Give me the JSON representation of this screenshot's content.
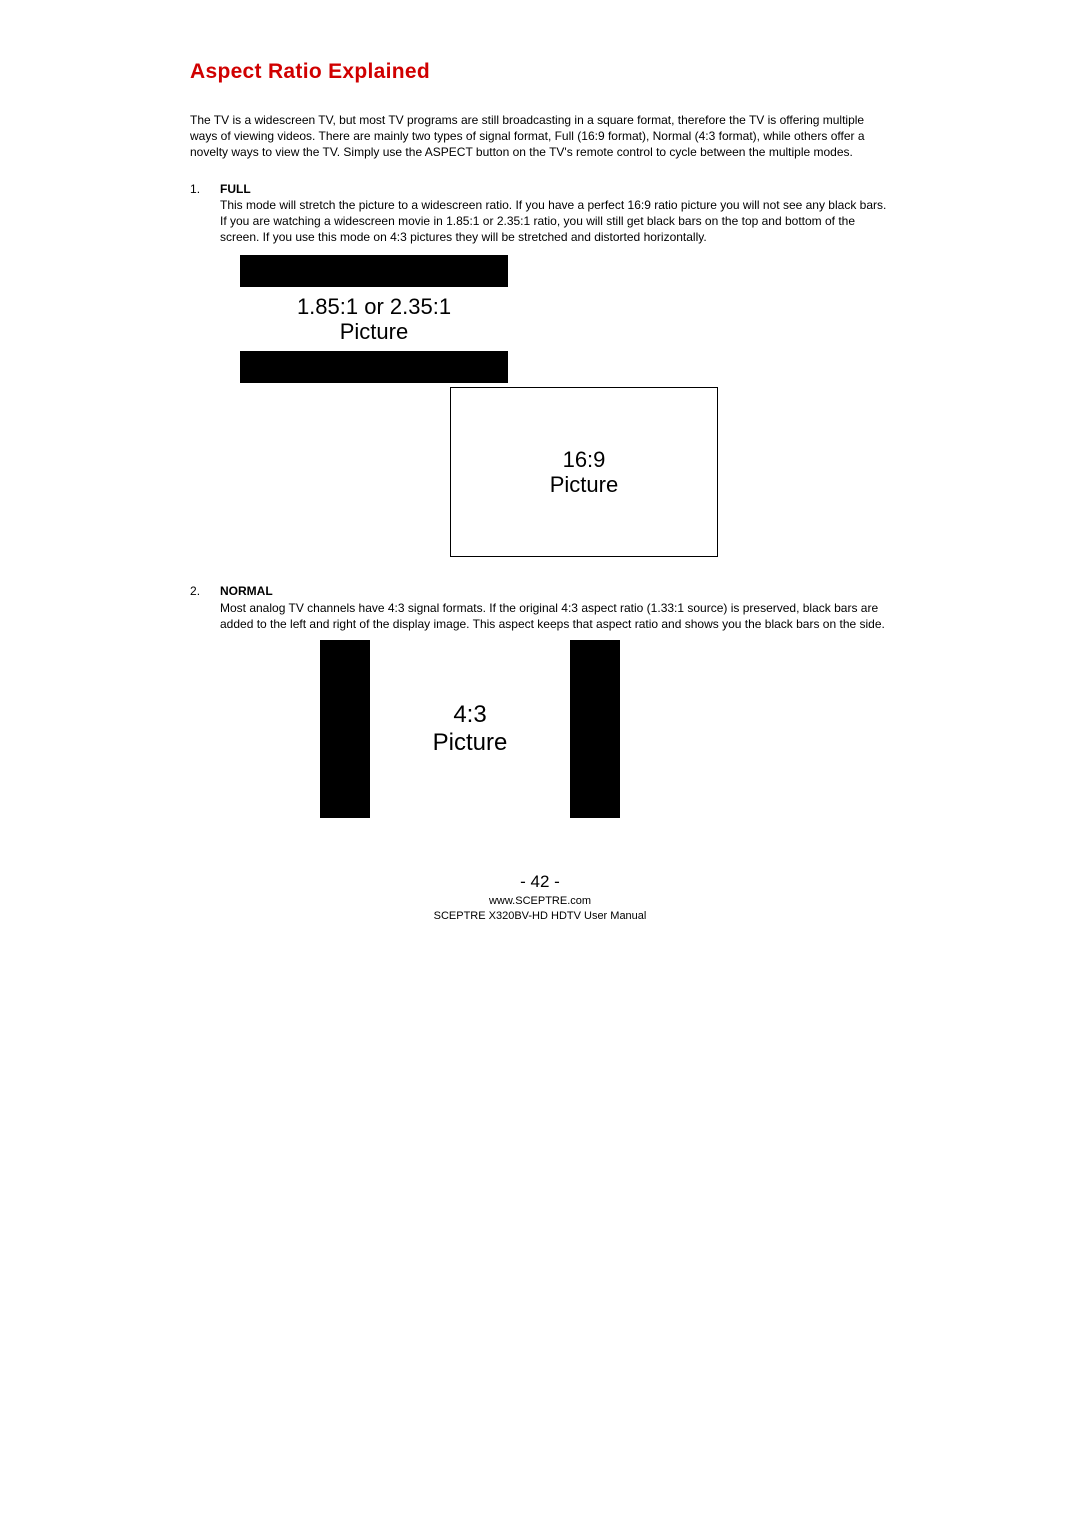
{
  "title": "Aspect Ratio Explained",
  "intro": "The TV is a widescreen TV, but most TV programs are still broadcasting in a square format, therefore the TV is offering multiple ways of viewing videos.  There are mainly two types of signal format, Full (16:9 format), Normal (4:3 format), while others offer a novelty ways to view the TV.  Simply use the ASPECT button on the TV's remote control to cycle between the multiple modes.",
  "items": [
    {
      "title": "FULL",
      "body": "This mode will stretch the picture to a widescreen ratio. If you have a perfect 16:9 ratio picture you will not see any black bars. If you are watching a widescreen movie in 1.85:1 or 2.35:1 ratio, you will still get black bars on the top and bottom of the screen.  If you use this mode on 4:3 pictures they will be stretched and distorted horizontally."
    },
    {
      "title": "NORMAL",
      "body": "Most analog TV channels have 4:3 signal formats.  If the original 4:3 aspect ratio (1.33:1 source) is preserved, black bars are added to the left and right of the display image. This aspect keeps that aspect ratio and shows you the black bars on the side."
    }
  ],
  "diagrams": {
    "full_letterbox": {
      "line1": "1.85:1 or 2.35:1",
      "line2": "Picture",
      "bar_color": "#000000",
      "bg_color": "#ffffff",
      "font_size": 22
    },
    "sixteen_nine": {
      "line1": "16:9",
      "line2": "Picture",
      "border_color": "#000000",
      "bg_color": "#ffffff",
      "font_size": 22
    },
    "normal_pillarbox": {
      "line1": "4:3",
      "line2": "Picture",
      "bar_color": "#000000",
      "bg_color": "#ffffff",
      "font_size": 24
    }
  },
  "footer": {
    "page_number": "- 42 -",
    "url": "www.SCEPTRE.com",
    "manual": "SCEPTRE X320BV-HD HDTV User Manual"
  },
  "colors": {
    "title_red": "#d00000",
    "text": "#000000",
    "background": "#ffffff"
  }
}
